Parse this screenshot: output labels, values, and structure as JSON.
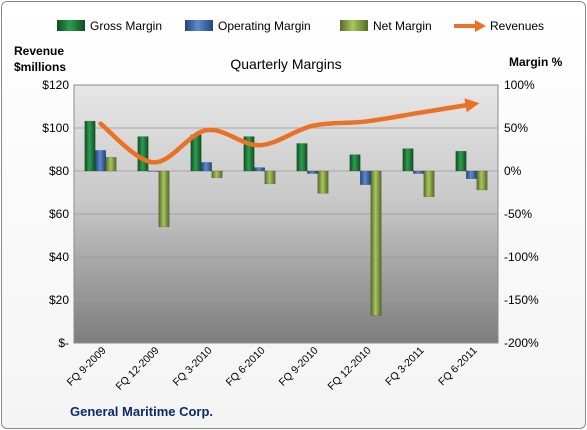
{
  "chart_data": {
    "type": "bar",
    "title": "Quarterly Margins",
    "company": "General Maritime Corp.",
    "left_axis": {
      "label_line1": "Revenue",
      "label_line2": "$millions",
      "range": [
        0,
        120
      ],
      "ticks": [
        {
          "value": 0,
          "label": "$-"
        },
        {
          "value": 20,
          "label": "$20"
        },
        {
          "value": 40,
          "label": "$40"
        },
        {
          "value": 60,
          "label": "$60"
        },
        {
          "value": 80,
          "label": "$80"
        },
        {
          "value": 100,
          "label": "$100"
        },
        {
          "value": 120,
          "label": "$120"
        }
      ]
    },
    "right_axis": {
      "label": "Margin %",
      "range": [
        -200,
        100
      ],
      "ticks": [
        {
          "value": -200,
          "label": "-200%"
        },
        {
          "value": -150,
          "label": "-150%"
        },
        {
          "value": -100,
          "label": "-100%"
        },
        {
          "value": -50,
          "label": "-50%"
        },
        {
          "value": 0,
          "label": "0%"
        },
        {
          "value": 50,
          "label": "50%"
        },
        {
          "value": 100,
          "label": "100%"
        }
      ]
    },
    "categories": [
      "FQ 9-2009",
      "FQ 12-2009",
      "FQ 3-2010",
      "FQ 6-2010",
      "FQ 9-2010",
      "FQ 12-2010",
      "FQ 3-2011",
      "FQ 6-2011"
    ],
    "series": [
      {
        "name": "Gross Margin",
        "axis": "right",
        "kind": "bar",
        "color": "#1e7b3a",
        "values": [
          58,
          40,
          42,
          40,
          32,
          19,
          26,
          23
        ]
      },
      {
        "name": "Operating Margin",
        "axis": "right",
        "kind": "bar",
        "color": "#3b6cb4",
        "values": [
          24,
          0,
          10,
          4,
          -3,
          -16,
          -3,
          -9
        ]
      },
      {
        "name": "Net Margin",
        "axis": "right",
        "kind": "bar",
        "color": "#86a33e",
        "values": [
          16,
          -65,
          -8,
          -15,
          -26,
          -168,
          -30,
          -22
        ]
      },
      {
        "name": "Revenues",
        "axis": "left",
        "kind": "line",
        "color": "#ea7125",
        "values": [
          102,
          84,
          99,
          92,
          101,
          103,
          107,
          111
        ]
      }
    ],
    "legend_position": "top",
    "grid": true
  }
}
